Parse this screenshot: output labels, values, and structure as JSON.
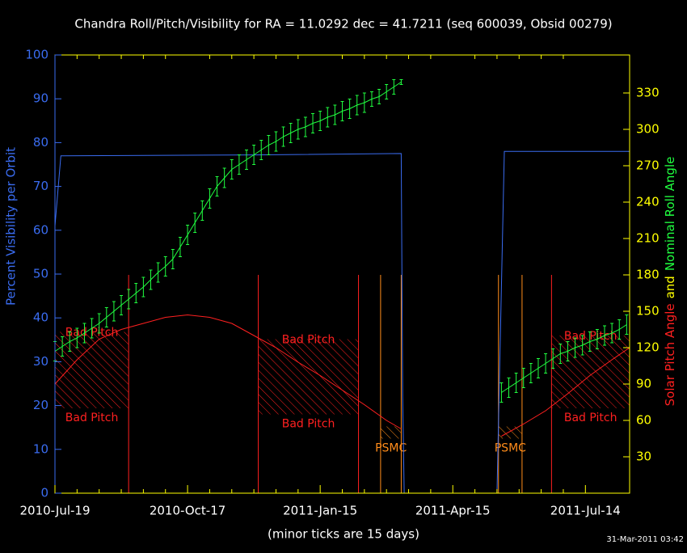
{
  "chart_data": {
    "type": "line",
    "title": "Chandra Roll/Pitch/Visibility for RA = 11.0292 dec = 41.7211 (seq 600039, Obsid 00279)",
    "xlabel": "(minor ticks are 15 days)",
    "ylabel": "Percent Visibility per Orbit",
    "y2label": [
      {
        "text": "Solar Pitch Angle",
        "color": "#ff2020"
      },
      {
        "text": "and",
        "color": "#ffff00"
      },
      {
        "text": "Nominal Roll Angle",
        "color": "#20ff40"
      }
    ],
    "footer": "31-Mar-2011 03:42",
    "xlim": [
      "2010-Jul-19",
      "2011-Aug-13"
    ],
    "xticks": [
      "2010-Jul-19",
      "2010-Oct-17",
      "2011-Jan-15",
      "2011-Apr-15",
      "2011-Jul-14"
    ],
    "ylim": [
      0,
      100
    ],
    "yticks": [
      0,
      10,
      20,
      30,
      40,
      50,
      60,
      70,
      80,
      90,
      100
    ],
    "y2lim": [
      0,
      361.33
    ],
    "y2ticks": [
      30,
      60,
      90,
      120,
      150,
      180,
      210,
      240,
      270,
      300,
      330
    ],
    "region_top": 180,
    "series": [
      {
        "color": "#3a6cf0",
        "axis": "y",
        "x": [
          "2010-Jul-19",
          "2010-Jul-23",
          "2010-Dec-01",
          "2011-Mar-11",
          "2011-Mar-12",
          "2011-Mar-13",
          "2011-May-15",
          "2011-May-20",
          "2011-Aug-13"
        ],
        "values": [
          61,
          77,
          77.2,
          77.5,
          22,
          0,
          0,
          78,
          78
        ]
      },
      {
        "color": "#20ff40",
        "axis": "y2",
        "x": [
          "2010-Jul-19",
          "2010-Jul-24",
          "2010-Jul-29",
          "2010-Aug-03",
          "2010-Aug-08",
          "2010-Aug-13",
          "2010-Aug-18",
          "2010-Aug-23",
          "2010-Aug-28",
          "2010-Sep-02",
          "2010-Sep-07",
          "2010-Sep-12",
          "2010-Sep-17",
          "2010-Sep-22",
          "2010-Sep-27",
          "2010-Oct-02",
          "2010-Oct-07",
          "2010-Oct-12",
          "2010-Oct-17",
          "2010-Oct-22",
          "2010-Oct-27",
          "2010-Nov-01",
          "2010-Nov-06",
          "2010-Nov-11",
          "2010-Nov-16",
          "2010-Nov-21",
          "2010-Nov-26",
          "2010-Dec-01",
          "2010-Dec-06",
          "2010-Dec-11",
          "2010-Dec-16",
          "2010-Dec-21",
          "2010-Dec-26",
          "2010-Dec-31",
          "2011-Jan-05",
          "2011-Jan-10",
          "2011-Jan-15",
          "2011-Jan-20",
          "2011-Jan-25",
          "2011-Jan-30",
          "2011-Feb-04",
          "2011-Feb-09",
          "2011-Feb-14",
          "2011-Feb-19",
          "2011-Feb-24",
          "2011-Mar-01",
          "2011-Mar-06",
          "2011-Mar-11",
          "2011-Apr-15",
          "2011-May-18",
          "2011-May-23",
          "2011-May-28",
          "2011-Jun-02",
          "2011-Jun-07",
          "2011-Jun-12",
          "2011-Jun-17",
          "2011-Jun-22",
          "2011-Jun-27",
          "2011-Jul-02",
          "2011-Jul-07",
          "2011-Jul-12",
          "2011-Jul-17",
          "2011-Jul-22",
          "2011-Jul-27",
          "2011-Aug-01",
          "2011-Aug-06",
          "2011-Aug-11"
        ],
        "values": [
          117,
          121,
          125,
          128,
          132,
          136,
          140,
          145,
          150,
          155,
          160,
          165,
          170,
          176,
          182,
          187,
          193,
          203,
          213,
          223,
          233,
          243,
          253,
          260,
          267,
          271,
          275,
          279,
          283,
          287,
          290,
          294,
          297,
          300,
          302,
          305,
          307,
          310,
          312,
          315,
          317,
          320,
          322,
          325,
          327,
          331,
          335,
          339,
          null,
          83,
          87,
          91,
          95,
          99,
          103,
          107,
          111,
          115,
          117,
          120,
          122,
          125,
          127,
          130,
          132,
          135,
          139
        ],
        "errors": [
          8,
          8,
          8,
          8,
          8,
          8,
          8,
          8,
          8,
          8,
          8,
          8,
          8,
          8,
          8,
          8,
          8,
          8,
          8,
          8,
          8,
          8,
          8,
          8,
          8,
          8,
          8,
          8,
          8,
          8,
          8,
          8,
          8,
          8,
          8,
          8,
          8,
          8,
          8,
          8,
          8,
          8,
          8,
          6,
          6,
          6,
          6,
          2,
          null,
          8,
          8,
          8,
          8,
          8,
          8,
          8,
          8,
          8,
          8,
          8,
          8,
          8,
          8,
          8,
          8,
          8,
          8
        ]
      },
      {
        "color": "#ff2020",
        "axis": "y2",
        "x": [
          "2010-Jul-19",
          "2010-Aug-03",
          "2010-Aug-18",
          "2010-Sep-02",
          "2010-Sep-17",
          "2010-Oct-02",
          "2010-Oct-17",
          "2010-Nov-01",
          "2010-Nov-16",
          "2010-Dec-01",
          "2010-Dec-16",
          "2010-Dec-31",
          "2011-Jan-15",
          "2011-Jan-30",
          "2011-Feb-14",
          "2011-Mar-01",
          "2011-Mar-11",
          "2011-Apr-15",
          "2011-May-18",
          "2011-Jun-02",
          "2011-Jun-17",
          "2011-Jul-02",
          "2011-Jul-17",
          "2011-Aug-01",
          "2011-Aug-13"
        ],
        "values": [
          90,
          110,
          127,
          135,
          140,
          145,
          147,
          145,
          140,
          130,
          120,
          108,
          97,
          85,
          73,
          60,
          53,
          null,
          47,
          57,
          68,
          82,
          97,
          110,
          120
        ]
      }
    ],
    "regions": [
      {
        "label": "Bad Pitch",
        "start": "2010-Jul-19",
        "end": "2010-Sep-07",
        "color": "#ff2020",
        "pitch_band": [
          70,
          133
        ]
      },
      {
        "label": "Bad Pitch",
        "start": "2010-Dec-04",
        "end": "2011-Feb-10",
        "color": "#ff2020",
        "pitch_band": [
          65,
          127
        ]
      },
      {
        "label": "PSMC",
        "start": "2011-Feb-25",
        "end": "2011-Mar-11",
        "color": "#ff8c1a",
        "pitch_band": [
          45,
          55
        ]
      },
      {
        "label": "PSMC",
        "start": "2011-May-16",
        "end": "2011-Jun-01",
        "color": "#ff8c1a",
        "pitch_band": [
          45,
          55
        ]
      },
      {
        "label": "Bad Pitch",
        "start": "2011-Jun-21",
        "end": "2011-Aug-13",
        "color": "#ff2020",
        "pitch_band": [
          70,
          130
        ]
      }
    ]
  }
}
